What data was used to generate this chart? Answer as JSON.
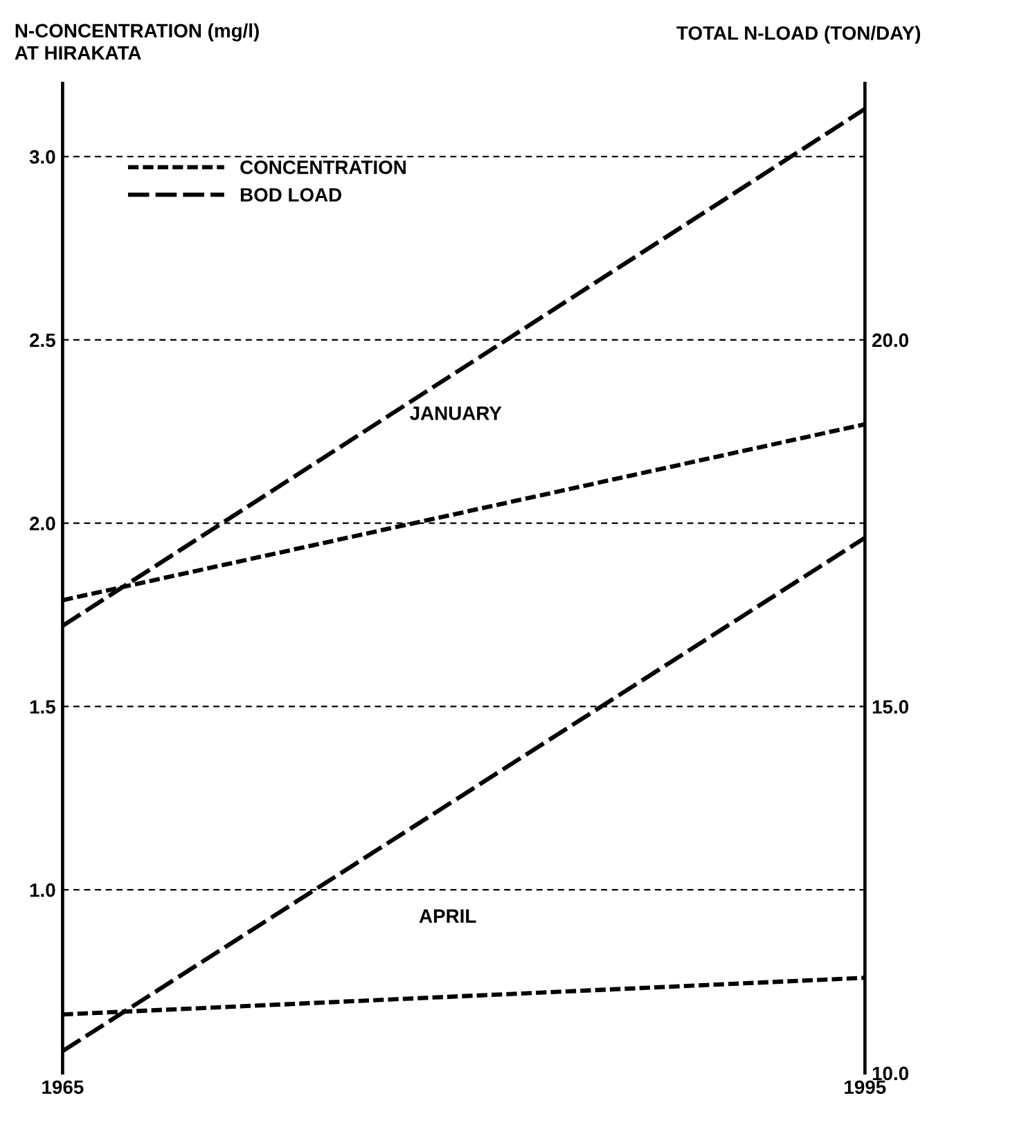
{
  "chart_data": {
    "type": "line",
    "ylabel": "N-CONCENTRATION (mg/l)\nAT HIRAKATA",
    "y2label": "TOTAL N-LOAD (TON/DAY)",
    "x": [
      1965,
      1995
    ],
    "xlim": [
      1965,
      1995
    ],
    "xticks": [
      1965,
      1995
    ],
    "ylim": [
      0.5,
      3.2
    ],
    "yticks": [
      {
        "value": 1.0,
        "label": "1.0"
      },
      {
        "value": 1.5,
        "label": "1.5"
      },
      {
        "value": 2.0,
        "label": "2.0"
      },
      {
        "value": 2.5,
        "label": "2.5"
      },
      {
        "value": 3.0,
        "label": "3.0"
      }
    ],
    "y2lim": [
      10,
      23.5
    ],
    "y2ticks": [
      {
        "value": 10,
        "label": "10.0"
      },
      {
        "value": 15,
        "label": "15.0"
      },
      {
        "value": 20,
        "label": "20.0"
      }
    ],
    "grid": "y",
    "legend": "top left",
    "marker": "none",
    "line_style": "dashed",
    "series": [
      {
        "name": "CONCENTRATION",
        "color": "#000000",
        "values": [
          1.79,
          2.27
        ]
      },
      {
        "name": "BOD LOAD",
        "color": "#000000",
        "axis": "y2",
        "values": [
          16.1,
          23.15
        ]
      },
      {
        "color": "#000000",
        "values": [
          0.66,
          0.76
        ]
      },
      {
        "color": "#000000",
        "axis": "y2",
        "values": [
          10.3,
          17.3
        ]
      }
    ],
    "annotations": [
      "JANUARY",
      "APRIL"
    ]
  }
}
